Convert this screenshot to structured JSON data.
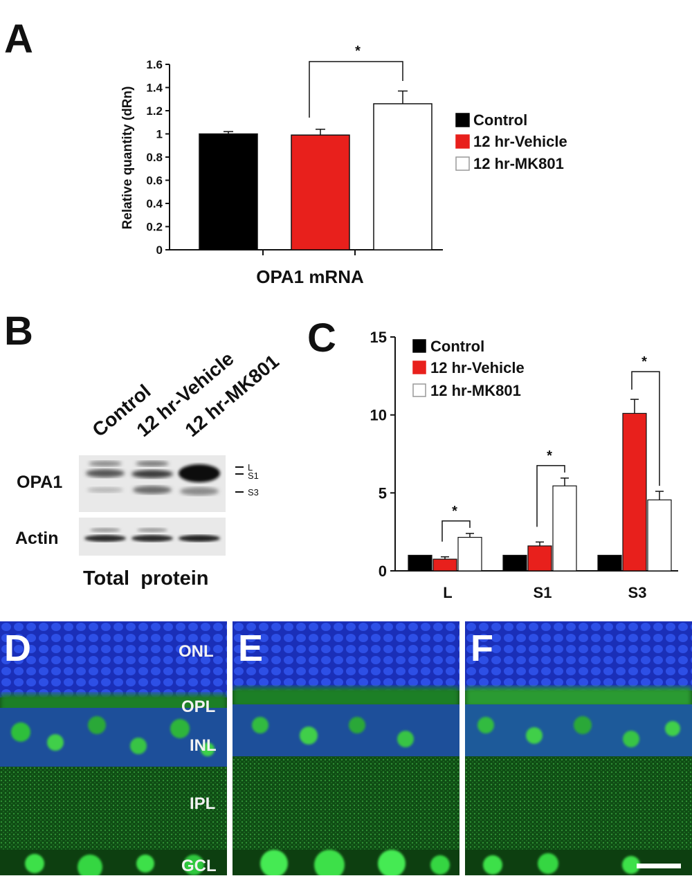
{
  "panels": {
    "a": "A",
    "b": "B",
    "c": "C",
    "d": "D",
    "e": "E",
    "f": "F"
  },
  "chart_data": [
    {
      "type": "bar",
      "panel": "A",
      "title": "",
      "xlabel": "OPA1 mRNA",
      "ylabel": "Relative quantity (dRn)",
      "ylim": [
        0,
        1.6
      ],
      "yticks": [
        "0",
        "0.2",
        "0.4",
        "0.6",
        "0.8",
        "1",
        "1.2",
        "1.4",
        "1.6"
      ],
      "series": [
        {
          "name": "Control",
          "value": 1.0,
          "error": 0.02,
          "color": "#000000"
        },
        {
          "name": "12 hr-Vehicle",
          "value": 0.99,
          "error": 0.05,
          "color": "#e8201c"
        },
        {
          "name": "12 hr-MK801",
          "value": 1.26,
          "error": 0.11,
          "color": "#ffffff"
        }
      ],
      "significance": [
        {
          "between": [
            "12 hr-Vehicle",
            "12 hr-MK801"
          ],
          "label": "*"
        }
      ],
      "legend": "right"
    },
    {
      "type": "bar",
      "panel": "C",
      "title": "",
      "xlabel": "",
      "ylabel": "",
      "ylim": [
        0,
        15
      ],
      "yticks": [
        "0",
        "5",
        "10",
        "15"
      ],
      "categories": [
        "L",
        "S1",
        "S3"
      ],
      "series": [
        {
          "name": "Control",
          "values": [
            1.0,
            1.0,
            1.0
          ],
          "errors": [
            0,
            0,
            0
          ],
          "color": "#000000"
        },
        {
          "name": "12 hr-Vehicle",
          "values": [
            0.75,
            1.6,
            10.1
          ],
          "errors": [
            0.15,
            0.25,
            0.9
          ],
          "color": "#e8201c"
        },
        {
          "name": "12 hr-MK801",
          "values": [
            2.15,
            5.45,
            4.55
          ],
          "errors": [
            0.25,
            0.5,
            0.55
          ],
          "color": "#ffffff"
        }
      ],
      "significance": [
        {
          "category": "L",
          "label": "*"
        },
        {
          "category": "S1",
          "label": "*"
        },
        {
          "category": "S3",
          "label": "*"
        }
      ],
      "legend": "top-left"
    }
  ],
  "blot": {
    "lanes": [
      "Control",
      "12 hr-Vehicle",
      "12 hr-MK801"
    ],
    "rows": [
      "OPA1",
      "Actin"
    ],
    "bands": [
      "L",
      "S1",
      "S3"
    ],
    "footer": "Total  protein"
  },
  "micrographs": [
    {
      "letter": "D",
      "layers": [
        "ONL",
        "OPL",
        "INL",
        "IPL",
        "GCL"
      ]
    },
    {
      "letter": "E",
      "layers": []
    },
    {
      "letter": "F",
      "layers": []
    }
  ],
  "colors": {
    "control": "#000000",
    "vehicle": "#e8201c",
    "mk801": "#ffffff",
    "nuclei_blue": "#1f3fd6",
    "opa1_green": "#1fa82a"
  }
}
